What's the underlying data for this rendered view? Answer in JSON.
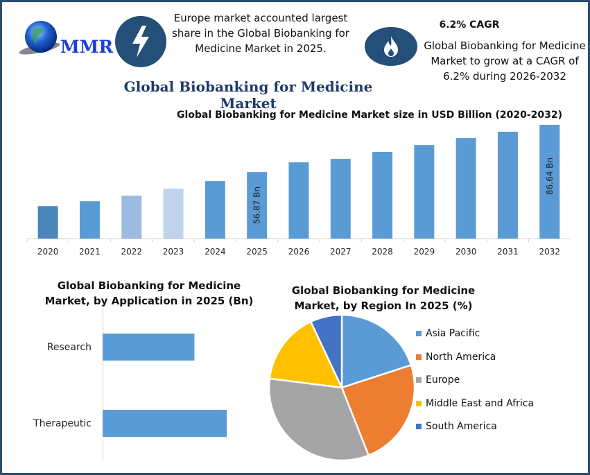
{
  "logo": {
    "text": "MMR"
  },
  "highlight_left": {
    "icon": "lightning-bolt-icon",
    "text": "Europe market accounted largest share in the Global Biobanking for Medicine Market in 2025."
  },
  "highlight_right": {
    "icon": "flame-icon",
    "heading": "6.2% CAGR",
    "text": "Global Biobanking for Medicine Market to grow at a CAGR of 6.2% during 2026-2032"
  },
  "page_title": "Global Biobanking for Medicine Market",
  "chart_data": [
    {
      "type": "bar",
      "title": "Global Biobanking for Medicine Market size in USD Billion (2020-2032)",
      "categories": [
        "2020",
        "2021",
        "2022",
        "2023",
        "2024",
        "2025",
        "2026",
        "2027",
        "2028",
        "2029",
        "2030",
        "2031",
        "2032"
      ],
      "values": [
        35.4,
        38.5,
        42.0,
        46.4,
        51.2,
        56.87,
        63.0,
        65.2,
        69.6,
        73.9,
        78.3,
        82.3,
        86.64
      ],
      "colors": [
        "#4a85bb",
        "#5b9bd5",
        "#9dbbe1",
        "#bfd3ec",
        "#5b9bd5",
        "#5b9bd5",
        "#5b9bd5",
        "#5b9bd5",
        "#5b9bd5",
        "#5b9bd5",
        "#5b9bd5",
        "#5b9bd5",
        "#5b9bd5"
      ],
      "data_labels": {
        "2025": "56.87 Bn",
        "2032": "86.64 Bn"
      },
      "ylim": [
        15,
        90
      ],
      "grid": false,
      "xlabel": "",
      "ylabel": ""
    },
    {
      "type": "bar",
      "orientation": "horizontal",
      "title": "Global Biobanking for Medicine Market, by Application in 2025 (Bn)",
      "categories": [
        "Research",
        "Therapeutic"
      ],
      "values": [
        0.74,
        1.0
      ],
      "color": "#5b9bd5",
      "xlim": [
        0,
        1.3
      ],
      "grid": false
    },
    {
      "type": "pie",
      "title": "Global Biobanking for Medicine Market, by Region In 2025 (%)",
      "categories": [
        "Asia Pacific",
        "North America",
        "Europe",
        "Middle East and Africa",
        "South America"
      ],
      "values": [
        20,
        24,
        33,
        16,
        7
      ],
      "colors": [
        "#5b9bd5",
        "#ed7d31",
        "#a5a5a5",
        "#ffc000",
        "#4472c4"
      ],
      "legend_position": "right"
    }
  ]
}
